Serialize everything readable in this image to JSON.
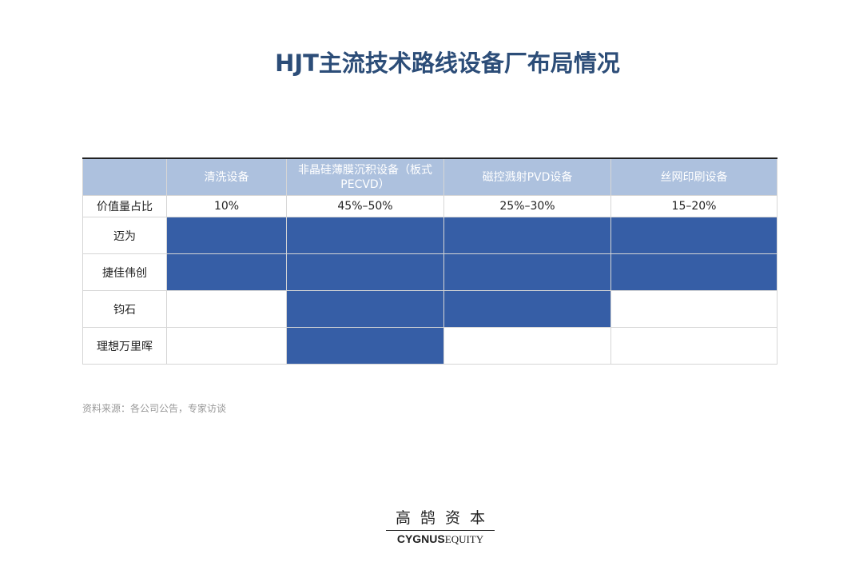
{
  "title": "HJT主流技术路线设备厂布局情况",
  "table": {
    "header": [
      "清洗设备",
      "非晶硅薄膜沉积设备（板式PECVD）",
      "磁控溅射PVD设备",
      "丝网印刷设备"
    ],
    "share_row": {
      "label": "价值量占比",
      "values": [
        "10%",
        "45%–50%",
        "25%–30%",
        "15–20%"
      ]
    },
    "rows": [
      {
        "name": "迈为",
        "covers": [
          true,
          true,
          true,
          true
        ]
      },
      {
        "name": "捷佳伟创",
        "covers": [
          true,
          true,
          true,
          true
        ]
      },
      {
        "name": "钧石",
        "covers": [
          false,
          true,
          true,
          false
        ]
      },
      {
        "name": "理想万里晖",
        "covers": [
          false,
          true,
          false,
          false
        ]
      }
    ],
    "header_color": "#adc1de",
    "fill_color": "#365ea6"
  },
  "source": "资料来源：各公司公告，专家访谈",
  "logo": {
    "chinese": "高鹄资本",
    "english_bold": "CYGNUS",
    "english_light": "EQUITY"
  }
}
